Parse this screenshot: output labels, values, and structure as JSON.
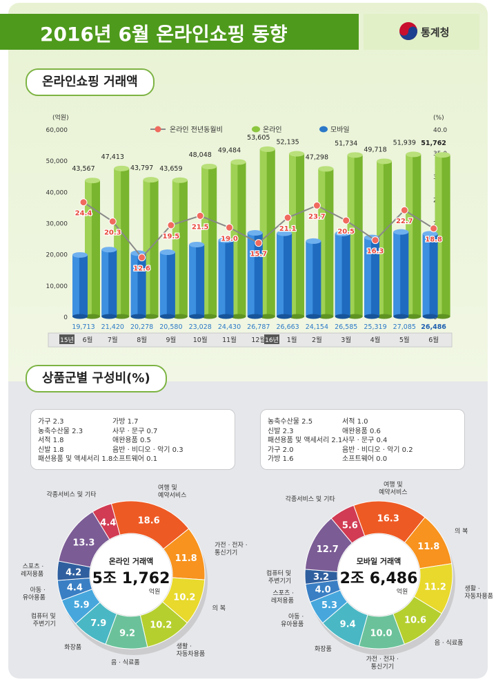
{
  "header": {
    "title": "2016년 6월 온라인쇼핑 동향",
    "org": "통계청"
  },
  "sections": {
    "trade": "온라인쇼핑 거래액",
    "composition": "상품군별 구성비(%)"
  },
  "chart_data": [
    {
      "type": "bar",
      "left_unit": "(억원)",
      "right_unit": "(%)",
      "ylim": [
        0,
        60000
      ],
      "y2lim": [
        0,
        40
      ],
      "yticks": [
        "60,000",
        "50,000",
        "40,000",
        "30,000",
        "20,000",
        "10,000",
        "0"
      ],
      "y2ticks": [
        "40.0",
        "35.0",
        "30.0",
        "25.0",
        "20.0",
        "15.0",
        "10.0",
        "5.0",
        "0"
      ],
      "legend": {
        "rate": "온라인 전년동월비",
        "online": "온라인",
        "mobile": "모바일"
      },
      "year_labels": {
        "y15": "15년",
        "y16": "16년"
      },
      "categories": [
        "6월",
        "7월",
        "8월",
        "9월",
        "10월",
        "11월",
        "12월",
        "1월",
        "2월",
        "3월",
        "4월",
        "5월",
        "6월"
      ],
      "online": [
        43567,
        47413,
        43797,
        43659,
        48048,
        49484,
        53605,
        52135,
        47298,
        51734,
        49718,
        51939,
        51762
      ],
      "online_labels": [
        "43,567",
        "47,413",
        "43,797",
        "43,659",
        "48,048",
        "49,484",
        "53,605",
        "52,135",
        "47,298",
        "51,734",
        "49,718",
        "51,939",
        "51,762"
      ],
      "mobile": [
        19713,
        21420,
        20278,
        20580,
        23028,
        24430,
        26787,
        26663,
        24154,
        26585,
        25319,
        27085,
        26486
      ],
      "mobile_labels": [
        "19,713",
        "21,420",
        "20,278",
        "20,580",
        "23,028",
        "24,430",
        "26,787",
        "26,663",
        "24,154",
        "26,585",
        "25,319",
        "27,085",
        "26,486"
      ],
      "rate": [
        24.4,
        20.3,
        12.6,
        19.5,
        21.5,
        19.0,
        15.7,
        21.1,
        23.7,
        20.5,
        16.3,
        22.7,
        18.8
      ],
      "rate_labels": [
        "24.4",
        "20.3",
        "12.6",
        "19.5",
        "21.5",
        "19.0",
        "15.7",
        "21.1",
        "23.7",
        "20.5",
        "16.3",
        "22.7",
        "18.8"
      ]
    },
    {
      "type": "pie",
      "center_title": "온라인 거래액",
      "center_value": "5조 1,762",
      "center_unit": "억원",
      "values": [
        18.6,
        11.8,
        10.2,
        10.2,
        9.2,
        7.9,
        5.9,
        4.4,
        4.2,
        13.3,
        4.4
      ],
      "value_labels": [
        "18.6",
        "11.8",
        "10.2",
        "10.2",
        "9.2",
        "7.9",
        "5.9",
        "4.4",
        "4.2",
        "13.3",
        "4.4"
      ],
      "colors": [
        "#ee5a24",
        "#f7931e",
        "#e8d92c",
        "#b5cf2f",
        "#6bc29a",
        "#4ab8c4",
        "#47a7dd",
        "#3a7fc4",
        "#2f5f9e",
        "#7b5c95",
        "#d13b53"
      ],
      "slice_labels": [
        "여행 및|예약서비스",
        "가전 · 전자 ·|통신기기",
        "의 복",
        "생활 ·|자동차용품",
        "음 · 식료품",
        "화장품",
        "컴퓨터 및|주변기기",
        "아동 ·|유아용품",
        "스포츠 ·|레저용품",
        "",
        "각종서비스 및 기타"
      ],
      "others": [
        [
          "가구 2.3",
          "농축수산물 2.3",
          "서적 1.8",
          "신발 1.8",
          "패션용품 및 액세서리 1.8"
        ],
        [
          "가방 1.7",
          "사무 · 문구 0.7",
          "애완용품 0.5",
          "음반 · 비디오 · 악기 0.3",
          "소프트웨어 0.1"
        ]
      ]
    },
    {
      "type": "pie",
      "center_title": "모바일 거래액",
      "center_value": "2조 6,486",
      "center_unit": "억원",
      "values": [
        16.3,
        11.8,
        11.2,
        10.6,
        10.0,
        9.4,
        5.3,
        4.0,
        3.2,
        12.7,
        5.6
      ],
      "value_labels": [
        "16.3",
        "11.8",
        "11.2",
        "10.6",
        "10.0",
        "9.4",
        "5.3",
        "4.0",
        "3.2",
        "12.7",
        "5.6"
      ],
      "colors": [
        "#ee5a24",
        "#f7931e",
        "#e8d92c",
        "#b5cf2f",
        "#6bc29a",
        "#4ab8c4",
        "#47a7dd",
        "#3a7fc4",
        "#2f5f9e",
        "#7b5c95",
        "#d13b53"
      ],
      "slice_labels": [
        "여행 및|예약서비스",
        "의 복",
        "생활 ·|자동차용품",
        "음 · 식료품",
        "가전 · 전자 ·|통신기기",
        "화장품",
        "아동 ·|유아용품",
        "스포츠 ·|레저용품",
        "컴퓨터 및|주변기기",
        "",
        "각종서비스 및 기타"
      ],
      "others": [
        [
          "농축수산물 2.5",
          "신발 2.3",
          "패션용품 및 액세서리 2.1",
          "가구 2.0",
          "가방 1.6"
        ],
        [
          "서적 1.0",
          "애완용품 0.6",
          "사무 · 문구 0.4",
          "음반 · 비디오 · 악기 0.2",
          "소프트웨어 0.0"
        ]
      ]
    }
  ]
}
